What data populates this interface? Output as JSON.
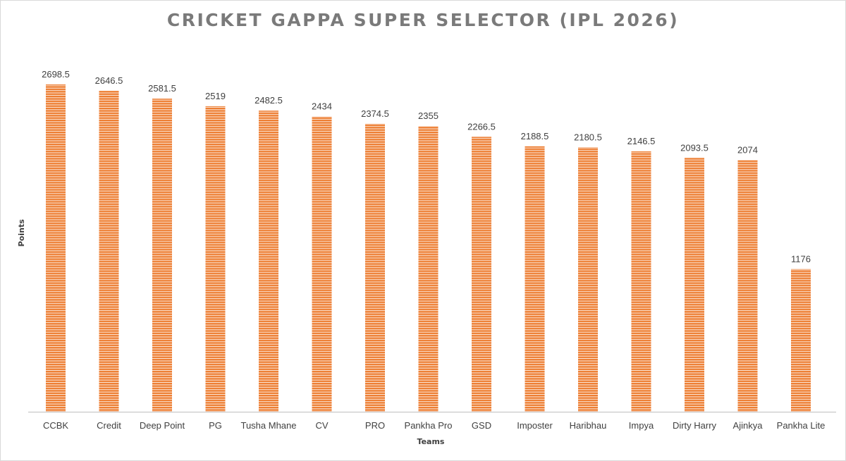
{
  "chart_data": {
    "type": "bar",
    "title": "CRICKET GAPPA SUPER SELECTOR (IPL 2026)",
    "xlabel": "Teams",
    "ylabel": "Points",
    "categories": [
      "CCBK",
      "Credit",
      "Deep Point",
      "PG",
      "Tusha Mhane",
      "CV",
      "PRO",
      "Pankha Pro",
      "GSD",
      "Imposter",
      "Haribhau",
      "Impya",
      "Dirty Harry",
      "Ajinkya",
      "Pankha Lite"
    ],
    "values": [
      2698.5,
      2646.5,
      2581.5,
      2519,
      2482.5,
      2434,
      2374.5,
      2355,
      2266.5,
      2188.5,
      2180.5,
      2146.5,
      2093.5,
      2074,
      1176
    ],
    "data_labels": [
      "2698.5",
      "2646.5",
      "2581.5",
      "2519",
      "2482.5",
      "2434",
      "2374.5",
      "2355",
      "2266.5",
      "2188.5",
      "2180.5",
      "2146.5",
      "2093.5",
      "2074",
      "1176"
    ],
    "ylim": [
      0,
      2698.5
    ],
    "grid": false,
    "legend": "none",
    "colors": {
      "bar": "#ed7d31",
      "bar_gap": "#fbe3d3",
      "axis": "#bfbfbf",
      "title": "#7a7a7a",
      "text": "#404040"
    }
  }
}
